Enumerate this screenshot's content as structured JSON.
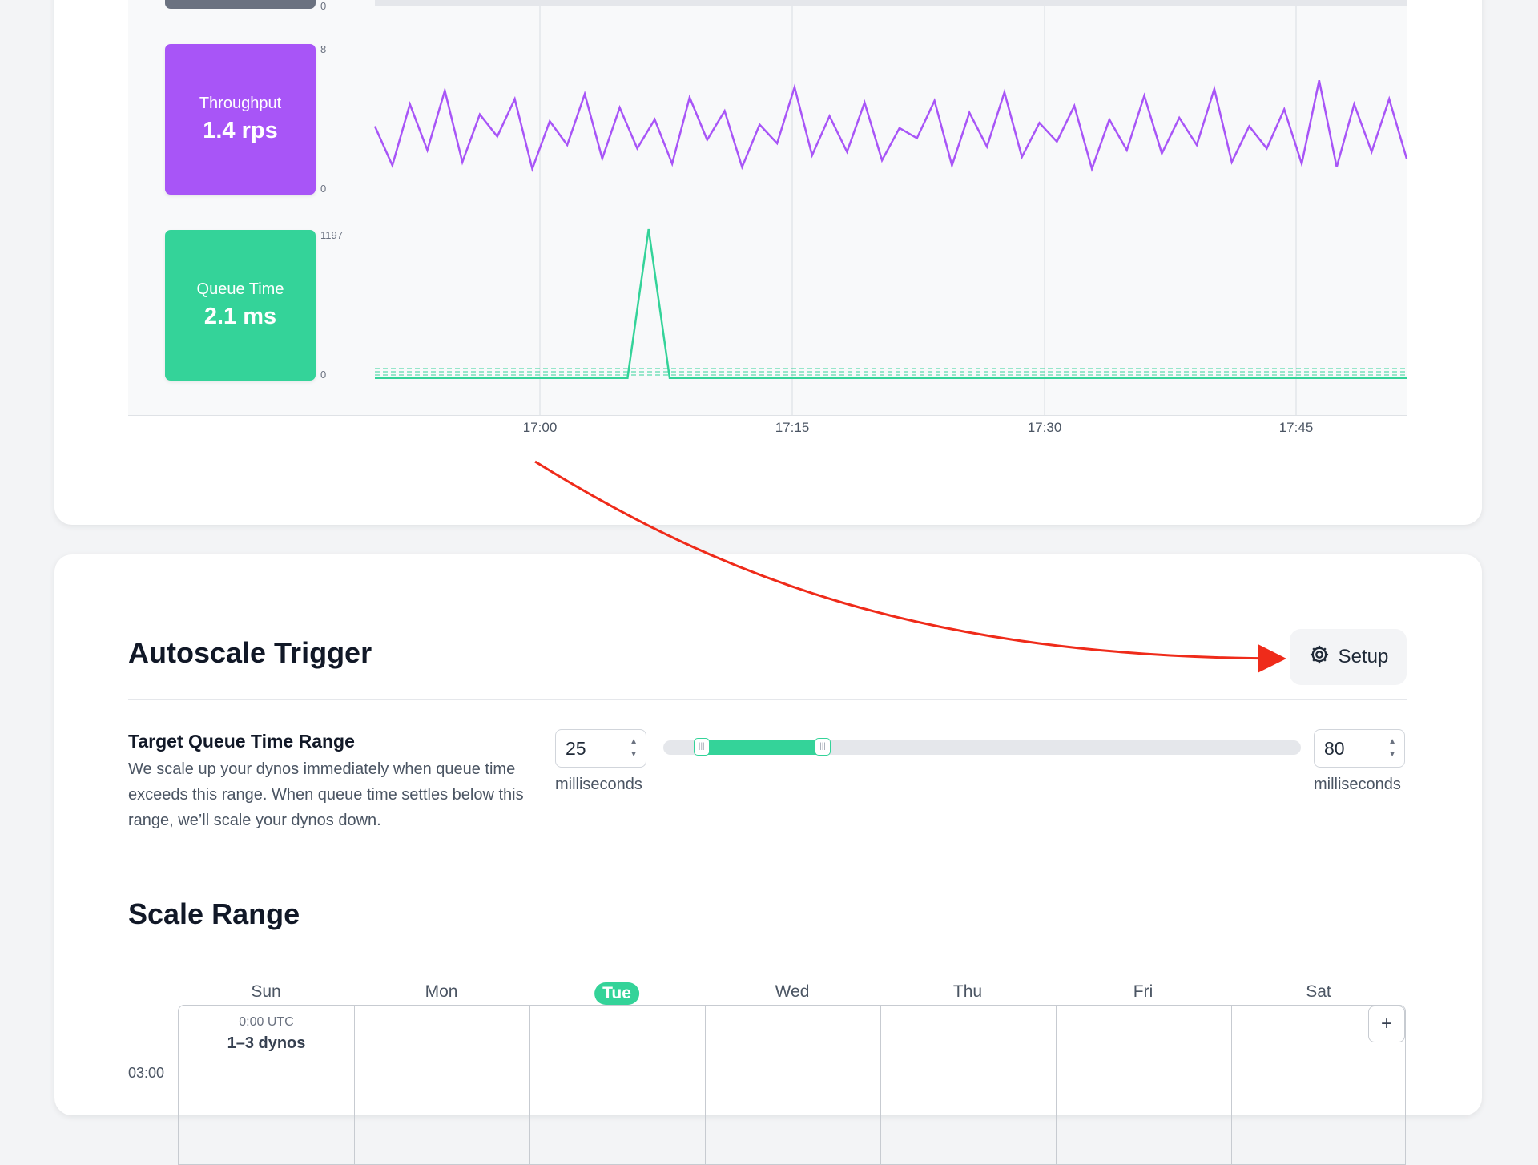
{
  "metrics_card": {
    "throughput": {
      "label": "Throughput",
      "value": "1.4 rps",
      "color": "#a855f7",
      "y_max_label": "8",
      "y_min_label": "0"
    },
    "queue_time": {
      "label": "Queue Time",
      "value": "2.1 ms",
      "color": "#34d399",
      "y_max_label": "1197",
      "y_min_label": "0"
    },
    "top_chart_y_min_label": "0",
    "x_ticks": [
      "17:00",
      "17:15",
      "17:30",
      "17:45"
    ]
  },
  "chart_data": [
    {
      "type": "line",
      "name": "Throughput",
      "ylim": [
        0,
        8
      ],
      "ytick_labels": [
        "0",
        "8"
      ],
      "xtick_labels": [
        "17:00",
        "17:15",
        "17:30",
        "17:45"
      ],
      "x_range": [
        "16:52",
        "17:53"
      ],
      "color": "#a855f7",
      "values": [
        3.5,
        1.2,
        4.8,
        2.1,
        5.6,
        1.4,
        4.2,
        2.9,
        5.1,
        1.0,
        3.8,
        2.4,
        5.4,
        1.6,
        4.6,
        2.2,
        3.9,
        1.3,
        5.2,
        2.7,
        4.4,
        1.1,
        3.6,
        2.5,
        5.8,
        1.8,
        4.1,
        2.0,
        4.9,
        1.5,
        3.4,
        2.8,
        5.0,
        1.2,
        4.3,
        2.3,
        5.5,
        1.7,
        3.7,
        2.6,
        4.7,
        1.0,
        3.9,
        2.1,
        5.3,
        1.9,
        4.0,
        2.4,
        5.7,
        1.4,
        3.5,
        2.2,
        4.5,
        1.3,
        6.2,
        1.1,
        4.8,
        2.0,
        5.1,
        1.6
      ]
    },
    {
      "type": "line",
      "name": "Queue Time",
      "ylim": [
        0,
        1197
      ],
      "ytick_labels": [
        "0",
        "1197"
      ],
      "xtick_labels": [
        "17:00",
        "17:15",
        "17:30",
        "17:45"
      ],
      "color": "#34d399",
      "values": [
        2,
        2,
        2,
        2,
        2,
        2,
        2,
        2,
        2,
        2,
        2,
        2,
        2,
        1197,
        2,
        2,
        2,
        2,
        2,
        2,
        2,
        2,
        2,
        2,
        2,
        2,
        2,
        2,
        2,
        2,
        2,
        2,
        2,
        2,
        2,
        2,
        2,
        2,
        2,
        2,
        2,
        2,
        2,
        2,
        2,
        2,
        2,
        2,
        2,
        2
      ]
    }
  ],
  "autoscale": {
    "title": "Autoscale Trigger",
    "setup_label": "Setup",
    "target_queue": {
      "title": "Target Queue Time Range",
      "description": "We scale up your dynos immediately when queue time exceeds this range. When queue time settles below this range, we’ll scale your dynos down.",
      "min_value": "25",
      "max_value": "80",
      "unit": "milliseconds",
      "slider_min_fraction": 0.06,
      "slider_max_fraction": 0.25
    }
  },
  "scale_range": {
    "title": "Scale Range",
    "days": [
      "Sun",
      "Mon",
      "Tue",
      "Wed",
      "Thu",
      "Fri",
      "Sat"
    ],
    "today": "Tue",
    "hour_label": "03:00",
    "schedule": {
      "time": "0:00 UTC",
      "dynos": "1–3 dynos"
    },
    "add_label": "+"
  },
  "colors": {
    "accent_green": "#34d399",
    "accent_purple": "#a855f7",
    "arrow_red": "#ef2b1a"
  }
}
